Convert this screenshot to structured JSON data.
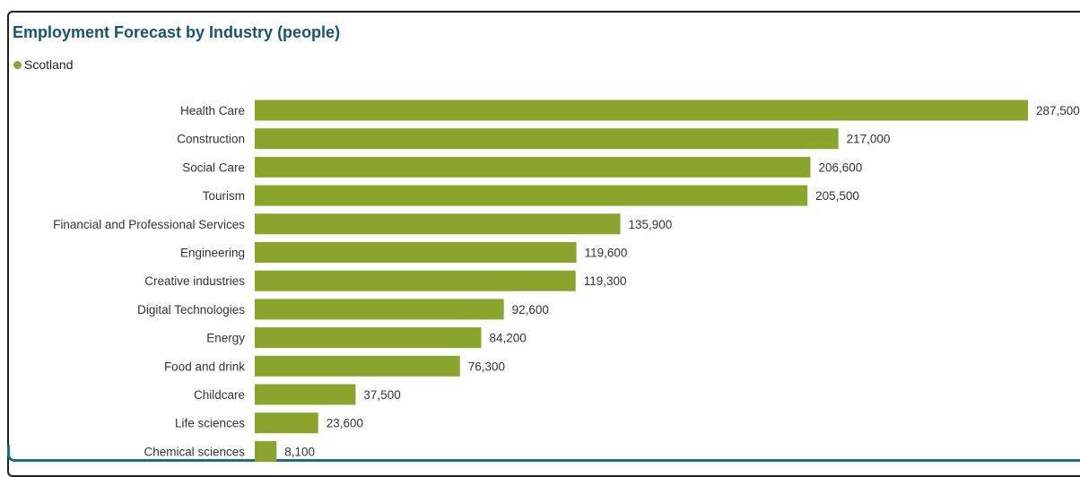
{
  "title": "Employment Forecast by Industry (people)",
  "legend": {
    "label": "Scotland",
    "color": "#8aa42c"
  },
  "colors": {
    "bar": "#8aa42c",
    "title": "#17556e"
  },
  "chart_data": {
    "type": "bar",
    "orientation": "horizontal",
    "title": "Employment Forecast by Industry (people)",
    "categories": [
      "Health Care",
      "Construction",
      "Social Care",
      "Tourism",
      "Financial and Professional Services",
      "Engineering",
      "Creative industries",
      "Digital Technologies",
      "Energy",
      "Food and drink",
      "Childcare",
      "Life sciences",
      "Chemical sciences"
    ],
    "series": [
      {
        "name": "Scotland",
        "values": [
          287500,
          217000,
          206600,
          205500,
          135900,
          119600,
          119300,
          92600,
          84200,
          76300,
          37500,
          23600,
          8100
        ]
      }
    ],
    "value_labels": [
      "287,500",
      "217,000",
      "206,600",
      "205,500",
      "135,900",
      "119,600",
      "119,300",
      "92,600",
      "84,200",
      "76,300",
      "37,500",
      "23,600",
      "8,100"
    ],
    "xlim": [
      0,
      287500
    ],
    "grid": false,
    "legend_position": "top-left"
  }
}
